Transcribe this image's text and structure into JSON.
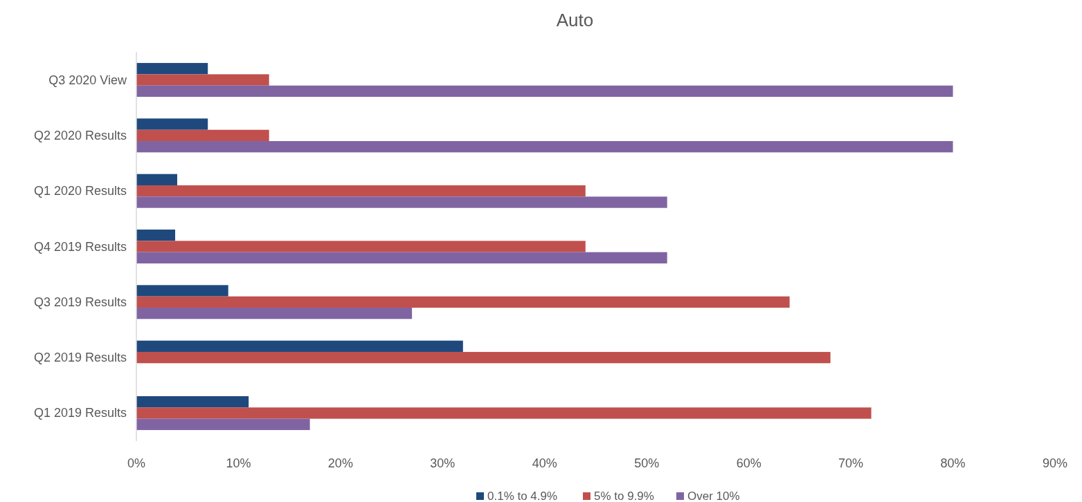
{
  "chart_data": {
    "type": "bar",
    "orientation": "horizontal",
    "title": "Auto",
    "categories": [
      "Q3 2020 View",
      "Q2 2020 Results",
      "Q1 2020 Results",
      "Q4 2019 Results",
      "Q3 2019 Results",
      "Q2 2019 Results",
      "Q1 2019 Results"
    ],
    "series": [
      {
        "name": "0.1% to 4.9%",
        "color": "#1f497d",
        "values": [
          7,
          7,
          4,
          3.8,
          9,
          32,
          11
        ]
      },
      {
        "name": "5% to 9.9%",
        "color": "#c0504d",
        "values": [
          13,
          13,
          44,
          44,
          64,
          68,
          72
        ]
      },
      {
        "name": "Over 10%",
        "color": "#8064a2",
        "values": [
          80,
          80,
          52,
          52,
          27,
          null,
          17
        ]
      }
    ],
    "xlim": [
      0,
      90
    ],
    "xticks": [
      {
        "value": 0,
        "label": "0%"
      },
      {
        "value": 10,
        "label": "10%"
      },
      {
        "value": 20,
        "label": "20%"
      },
      {
        "value": 30,
        "label": "30%"
      },
      {
        "value": 40,
        "label": "40%"
      },
      {
        "value": 50,
        "label": "50%"
      },
      {
        "value": 60,
        "label": "60%"
      },
      {
        "value": 70,
        "label": "70%"
      },
      {
        "value": 80,
        "label": "80%"
      },
      {
        "value": 90,
        "label": "90%"
      }
    ],
    "grid": false,
    "legend": "bottom"
  }
}
